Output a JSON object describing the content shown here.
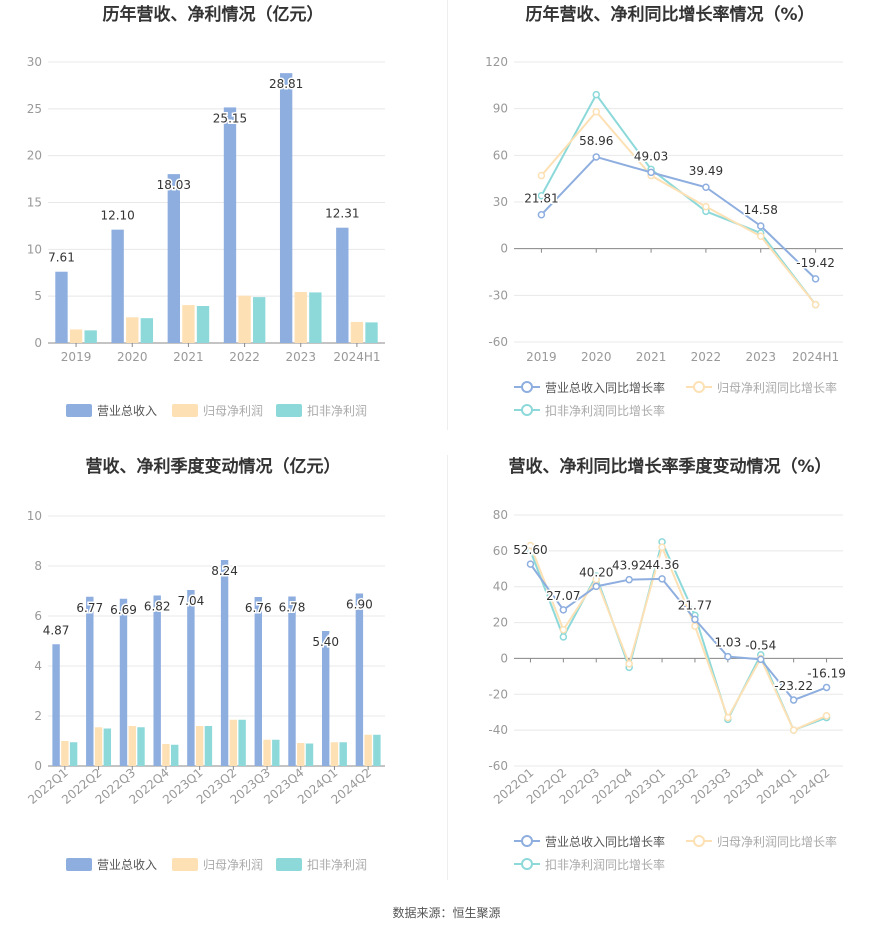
{
  "source_prefix": "数据来源：",
  "source_name": "恒生聚源",
  "colors": {
    "revenue": "#8eaedf",
    "net_profit": "#fde1b5",
    "deducted_profit": "#8dd9da",
    "grid": "#e8e8e8",
    "axis_text": "#999999",
    "label_text": "#333333",
    "title": "#333333"
  },
  "chart_data": [
    {
      "id": "annual_amounts",
      "type": "bar",
      "title": "历年营收、净利情况（亿元）",
      "categories": [
        "2019",
        "2020",
        "2021",
        "2022",
        "2023",
        "2024H1"
      ],
      "ylim": [
        0,
        30
      ],
      "yticks": [
        0,
        5,
        10,
        15,
        20,
        25,
        30
      ],
      "grid": true,
      "legend_position": "bottom",
      "label_series": 0,
      "series": [
        {
          "name": "营业总收入",
          "values": [
            7.61,
            12.1,
            18.03,
            25.15,
            28.81,
            12.31
          ]
        },
        {
          "name": "归母净利润",
          "values": [
            1.45,
            2.75,
            4.05,
            5.05,
            5.45,
            2.25
          ]
        },
        {
          "name": "扣非净利润",
          "values": [
            1.35,
            2.65,
            3.95,
            4.9,
            5.4,
            2.2
          ]
        }
      ]
    },
    {
      "id": "annual_growth",
      "type": "line",
      "title": "历年营收、净利同比增长率情况（%）",
      "categories": [
        "2019",
        "2020",
        "2021",
        "2022",
        "2023",
        "2024H1"
      ],
      "ylim": [
        -60,
        120
      ],
      "yticks": [
        -60,
        -30,
        0,
        30,
        60,
        90,
        120
      ],
      "grid": true,
      "legend_position": "bottom",
      "label_series": 0,
      "series": [
        {
          "name": "营业总收入同比增长率",
          "values": [
            21.81,
            58.96,
            49.03,
            39.49,
            14.58,
            -19.42
          ]
        },
        {
          "name": "归母净利润同比增长率",
          "values": [
            47,
            88,
            47,
            27,
            8,
            -36
          ]
        },
        {
          "name": "扣非净利润同比增长率",
          "values": [
            34,
            99,
            51,
            24,
            10,
            -36
          ]
        }
      ]
    },
    {
      "id": "quarterly_amounts",
      "type": "bar",
      "title": "营收、净利季度变动情况（亿元）",
      "categories": [
        "2022Q1",
        "2022Q2",
        "2022Q3",
        "2022Q4",
        "2023Q1",
        "2023Q2",
        "2023Q3",
        "2023Q4",
        "2024Q1",
        "2024Q2"
      ],
      "ylim": [
        0,
        10
      ],
      "yticks": [
        0,
        2,
        4,
        6,
        8,
        10
      ],
      "grid": true,
      "legend_position": "bottom",
      "label_series": 0,
      "series": [
        {
          "name": "营业总收入",
          "values": [
            4.87,
            6.77,
            6.69,
            6.82,
            7.04,
            8.24,
            6.76,
            6.78,
            5.4,
            6.9
          ]
        },
        {
          "name": "归母净利润",
          "values": [
            1.0,
            1.55,
            1.6,
            0.88,
            1.6,
            1.85,
            1.05,
            0.92,
            0.95,
            1.25
          ]
        },
        {
          "name": "扣非净利润",
          "values": [
            0.95,
            1.5,
            1.55,
            0.85,
            1.6,
            1.85,
            1.05,
            0.9,
            0.95,
            1.25
          ]
        }
      ]
    },
    {
      "id": "quarterly_growth",
      "type": "line",
      "title": "营收、净利同比增长率季度变动情况（%）",
      "categories": [
        "2022Q1",
        "2022Q2",
        "2022Q3",
        "2022Q4",
        "2023Q1",
        "2023Q2",
        "2023Q3",
        "2023Q4",
        "2024Q1",
        "2024Q2"
      ],
      "ylim": [
        -60,
        80
      ],
      "yticks": [
        -60,
        -40,
        -20,
        0,
        20,
        40,
        60,
        80
      ],
      "grid": true,
      "legend_position": "bottom",
      "label_series": 0,
      "series": [
        {
          "name": "营业总收入同比增长率",
          "values": [
            52.6,
            27.07,
            40.2,
            43.92,
            44.36,
            21.77,
            1.03,
            -0.54,
            -23.22,
            -16.19
          ]
        },
        {
          "name": "归母净利润同比增长率",
          "values": [
            63,
            16,
            44,
            -3,
            62,
            18,
            -33,
            0,
            -40,
            -32
          ]
        },
        {
          "name": "扣非净利润同比增长率",
          "values": [
            60,
            12,
            46,
            -5,
            65,
            24,
            -34,
            2,
            -40,
            -33
          ]
        }
      ]
    }
  ]
}
